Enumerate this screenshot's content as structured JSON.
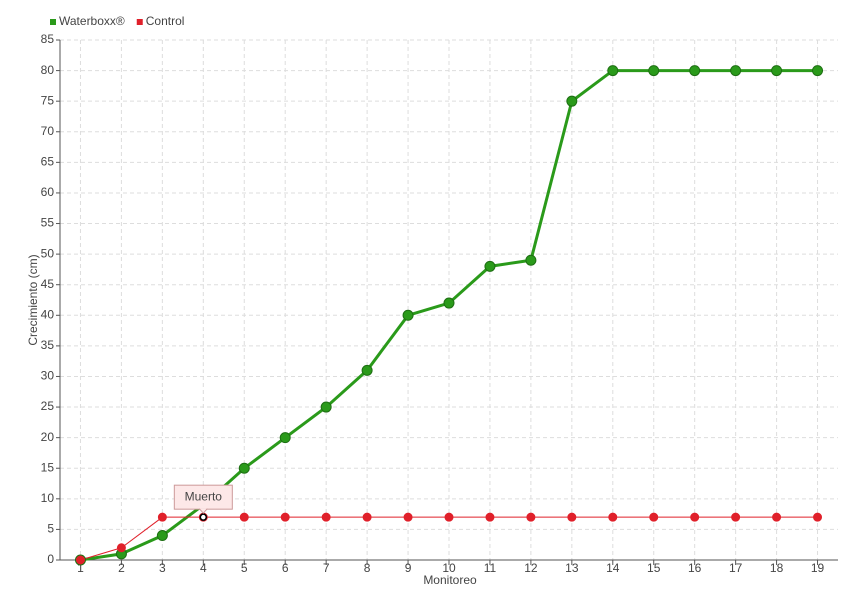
{
  "chart_data": {
    "type": "line",
    "x_label": "Monitoreo",
    "y_label": "Crecimiento (cm)",
    "x": [
      1,
      2,
      3,
      4,
      5,
      6,
      7,
      8,
      9,
      10,
      11,
      12,
      13,
      14,
      15,
      16,
      17,
      18,
      19
    ],
    "xlim": [
      0.5,
      19.5
    ],
    "xticks": [
      1,
      2,
      3,
      4,
      5,
      6,
      7,
      8,
      9,
      10,
      11,
      12,
      13,
      14,
      15,
      16,
      17,
      18,
      19
    ],
    "ylim": [
      0,
      85
    ],
    "yticks": [
      0,
      5,
      10,
      15,
      20,
      25,
      30,
      35,
      40,
      45,
      50,
      55,
      60,
      65,
      70,
      75,
      80,
      85
    ],
    "grid": true,
    "legend": "top-left",
    "series": [
      {
        "name": "Waterboxx®",
        "color": "#2a9a1a",
        "values": [
          0,
          1,
          4,
          9,
          15,
          20,
          25,
          31,
          40,
          42,
          48,
          49,
          75,
          80,
          80,
          80,
          80,
          80,
          80
        ]
      },
      {
        "name": "Control",
        "color": "#e0202a",
        "values": [
          0,
          2,
          7,
          7,
          7,
          7,
          7,
          7,
          7,
          7,
          7,
          7,
          7,
          7,
          7,
          7,
          7,
          7,
          7
        ]
      }
    ],
    "annotations": [
      {
        "text": "Muerto",
        "x": 4,
        "y": 7
      }
    ]
  }
}
